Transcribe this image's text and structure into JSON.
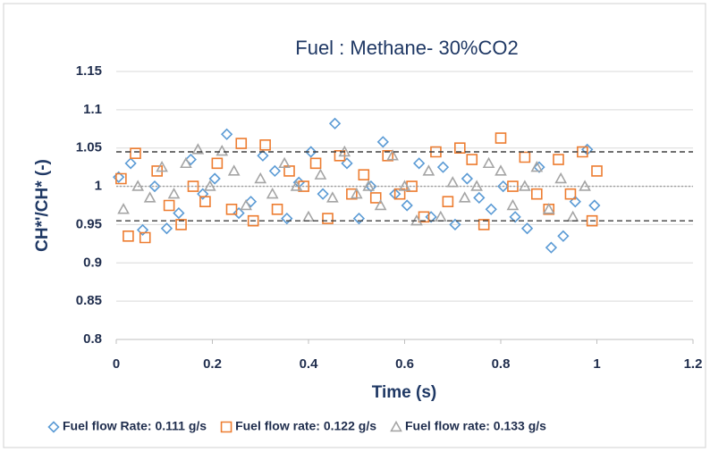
{
  "chart_data": {
    "type": "scatter",
    "title": "Fuel : Methane- 30%CO2",
    "x_label": "Time (s)",
    "y_label": "CH*'/CH* (-)",
    "xlim": [
      0,
      1.2
    ],
    "xticks": [
      0,
      0.2,
      0.4,
      0.6,
      0.8,
      1,
      1.2
    ],
    "ylim": [
      0.8,
      1.15
    ],
    "yticks": [
      0.8,
      0.85,
      0.9,
      0.95,
      1,
      1.05,
      1.1,
      1.15
    ],
    "grid": true,
    "legend": "bottom",
    "reference_lines": [
      {
        "value": 1.045,
        "style": "dashed",
        "color": "#404040"
      },
      {
        "value": 1,
        "style": "dotted",
        "color": "#a0a0a0"
      },
      {
        "value": 0.955,
        "style": "dashed",
        "color": "#404040"
      }
    ],
    "series": [
      {
        "name": "Fuel flow Rate: 0.111 g/s",
        "color": "#5b9bd5",
        "marker": "diamond",
        "x": [
          0.005,
          0.03,
          0.055,
          0.08,
          0.105,
          0.13,
          0.155,
          0.18,
          0.205,
          0.23,
          0.255,
          0.28,
          0.305,
          0.33,
          0.355,
          0.38,
          0.405,
          0.43,
          0.455,
          0.48,
          0.505,
          0.53,
          0.555,
          0.58,
          0.605,
          0.63,
          0.655,
          0.68,
          0.705,
          0.73,
          0.755,
          0.78,
          0.805,
          0.83,
          0.855,
          0.88,
          0.905,
          0.93,
          0.955,
          0.98,
          0.995
        ],
        "values": [
          1.012,
          1.03,
          0.943,
          1.0,
          0.945,
          0.965,
          1.035,
          0.99,
          1.01,
          1.068,
          0.965,
          0.98,
          1.04,
          1.02,
          0.958,
          1.005,
          1.045,
          0.99,
          1.082,
          1.03,
          0.958,
          1.0,
          1.058,
          0.99,
          0.975,
          1.03,
          0.96,
          1.025,
          0.95,
          1.01,
          0.985,
          0.97,
          1.0,
          0.96,
          0.945,
          1.025,
          0.92,
          0.935,
          0.98,
          1.048,
          0.975
        ]
      },
      {
        "name": "Fuel flow rate: 0.122 g/s",
        "color": "#ed7d31",
        "marker": "square",
        "x": [
          0.01,
          0.025,
          0.04,
          0.06,
          0.085,
          0.11,
          0.135,
          0.16,
          0.185,
          0.21,
          0.24,
          0.26,
          0.285,
          0.31,
          0.335,
          0.36,
          0.39,
          0.415,
          0.44,
          0.465,
          0.49,
          0.515,
          0.54,
          0.565,
          0.59,
          0.615,
          0.64,
          0.665,
          0.69,
          0.715,
          0.74,
          0.765,
          0.8,
          0.825,
          0.85,
          0.875,
          0.9,
          0.92,
          0.945,
          0.97,
          0.99,
          1.0
        ],
        "values": [
          1.01,
          0.935,
          1.043,
          0.933,
          1.02,
          0.975,
          0.95,
          1.0,
          0.98,
          1.03,
          0.97,
          1.056,
          0.955,
          1.054,
          0.97,
          1.02,
          1.0,
          1.03,
          0.958,
          1.04,
          0.99,
          1.015,
          0.985,
          1.04,
          0.99,
          1.0,
          0.96,
          1.045,
          0.98,
          1.05,
          1.035,
          0.95,
          1.063,
          1.0,
          1.038,
          0.99,
          0.97,
          1.035,
          0.99,
          1.045,
          0.955,
          1.02
        ]
      },
      {
        "name": "Fuel flow rate: 0.133 g/s",
        "color": "#a5a5a5",
        "marker": "triangle",
        "x": [
          0.015,
          0.045,
          0.07,
          0.095,
          0.12,
          0.145,
          0.17,
          0.195,
          0.22,
          0.245,
          0.27,
          0.3,
          0.325,
          0.35,
          0.375,
          0.4,
          0.425,
          0.45,
          0.475,
          0.5,
          0.525,
          0.55,
          0.575,
          0.6,
          0.625,
          0.65,
          0.675,
          0.7,
          0.725,
          0.75,
          0.775,
          0.8,
          0.825,
          0.85,
          0.875,
          0.9,
          0.925,
          0.95,
          0.975
        ],
        "values": [
          0.97,
          1.0,
          0.985,
          1.025,
          0.99,
          1.03,
          1.048,
          1.0,
          1.046,
          1.02,
          0.975,
          1.01,
          0.99,
          1.03,
          1.0,
          0.96,
          1.015,
          0.985,
          1.045,
          0.99,
          1.0,
          0.975,
          1.04,
          1.0,
          0.955,
          1.02,
          0.96,
          1.005,
          0.985,
          1.0,
          1.03,
          1.02,
          0.975,
          1.0,
          1.025,
          0.97,
          1.01,
          0.96,
          1.0
        ]
      }
    ]
  }
}
